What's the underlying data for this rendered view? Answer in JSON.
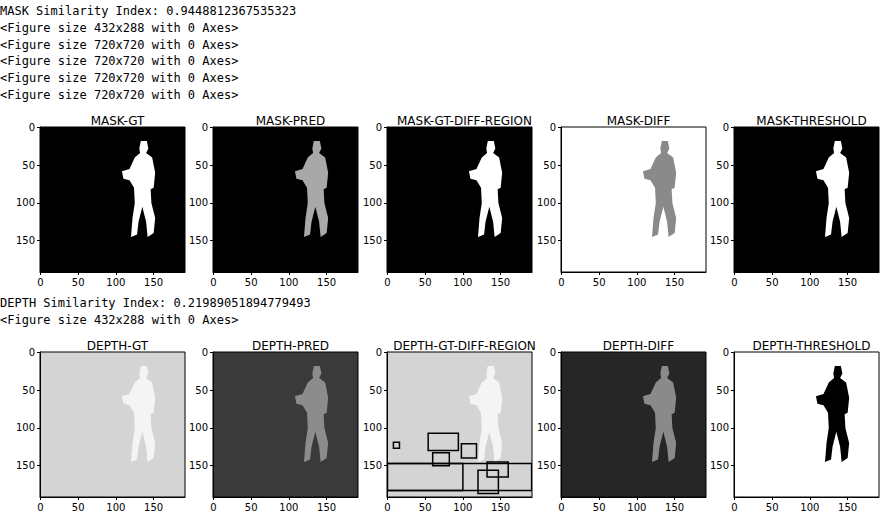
{
  "text_output": {
    "mask_lines": [
      "MASK Similarity Index: 0.9448812367535323",
      "<Figure size 432x288 with 0 Axes>",
      "<Figure size 720x720 with 0 Axes>",
      "<Figure size 720x720 with 0 Axes>",
      "<Figure size 720x720 with 0 Axes>",
      "<Figure size 720x720 with 0 Axes>"
    ],
    "depth_lines": [
      "DEPTH Similarity Index: 0.21989051894779493",
      "<Figure size 432x288 with 0 Axes>"
    ]
  },
  "figure_outline": [
    [
      133,
      18
    ],
    [
      141,
      18
    ],
    [
      143,
      28
    ],
    [
      140,
      34
    ],
    [
      148,
      40
    ],
    [
      152,
      60
    ],
    [
      150,
      80
    ],
    [
      146,
      82
    ],
    [
      147,
      100
    ],
    [
      152,
      120
    ],
    [
      150,
      140
    ],
    [
      142,
      145
    ],
    [
      140,
      125
    ],
    [
      135,
      105
    ],
    [
      130,
      125
    ],
    [
      128,
      142
    ],
    [
      120,
      145
    ],
    [
      122,
      120
    ],
    [
      125,
      100
    ],
    [
      124,
      80
    ],
    [
      118,
      70
    ],
    [
      110,
      68
    ],
    [
      108,
      58
    ],
    [
      118,
      55
    ],
    [
      125,
      40
    ],
    [
      132,
      34
    ],
    [
      131,
      28
    ]
  ],
  "chart_data": [
    {
      "type": "image",
      "title": "MASK-GT",
      "xlim": [
        -0.5,
        191.5
      ],
      "ylim": [
        -0.5,
        191.5
      ],
      "xticks": [
        0,
        50,
        100,
        150
      ],
      "yticks": [
        0,
        50,
        100,
        150
      ],
      "background": "#000000",
      "figure_color": "#ffffff"
    },
    {
      "type": "image",
      "title": "MASK-PRED",
      "xlim": [
        -0.5,
        191.5
      ],
      "ylim": [
        -0.5,
        191.5
      ],
      "xticks": [
        0,
        50,
        100,
        150
      ],
      "yticks": [
        0,
        50,
        100,
        150
      ],
      "background": "#000000",
      "figure_color": "#a8a8a8"
    },
    {
      "type": "image",
      "title": "MASK-GT-DIFF-REGION",
      "xlim": [
        -0.5,
        191.5
      ],
      "ylim": [
        -0.5,
        191.5
      ],
      "xticks": [
        0,
        50,
        100,
        150
      ],
      "yticks": [
        0,
        50,
        100,
        150
      ],
      "background": "#000000",
      "figure_color": "#ffffff"
    },
    {
      "type": "image",
      "title": "MASK-DIFF",
      "xlim": [
        -0.5,
        191.5
      ],
      "ylim": [
        -0.5,
        191.5
      ],
      "xticks": [
        0,
        50,
        100,
        150
      ],
      "yticks": [
        0,
        50,
        100,
        150
      ],
      "background": "#ffffff",
      "figure_color": "#8a8a8a"
    },
    {
      "type": "image",
      "title": "MASK-THRESHOLD",
      "xlim": [
        -0.5,
        191.5
      ],
      "ylim": [
        -0.5,
        191.5
      ],
      "xticks": [
        0,
        50,
        100,
        150
      ],
      "yticks": [
        0,
        50,
        100,
        150
      ],
      "background": "#000000",
      "figure_color": "#ffffff"
    },
    {
      "type": "image",
      "title": "DEPTH-GT",
      "xlim": [
        -0.5,
        191.5
      ],
      "ylim": [
        -0.5,
        191.5
      ],
      "xticks": [
        0,
        50,
        100,
        150
      ],
      "yticks": [
        0,
        50,
        100,
        150
      ],
      "background": "#d4d4d4",
      "figure_color": "#f4f4f4"
    },
    {
      "type": "image",
      "title": "DEPTH-PRED",
      "xlim": [
        -0.5,
        191.5
      ],
      "ylim": [
        -0.5,
        191.5
      ],
      "xticks": [
        0,
        50,
        100,
        150
      ],
      "yticks": [
        0,
        50,
        100,
        150
      ],
      "background": "#3a3a3a",
      "figure_color": "#8c8c8c"
    },
    {
      "type": "image",
      "title": "DEPTH-GT-DIFF-REGION",
      "xlim": [
        -0.5,
        191.5
      ],
      "ylim": [
        -0.5,
        191.5
      ],
      "xticks": [
        0,
        50,
        100,
        150
      ],
      "yticks": [
        0,
        50,
        100,
        150
      ],
      "background": "#d4d4d4",
      "figure_color": "#f4f4f4",
      "boxes": [
        [
          0,
          147,
          191,
          183
        ],
        [
          0,
          147,
          100,
          183
        ],
        [
          54,
          107,
          94,
          130
        ],
        [
          8,
          119,
          16,
          127
        ],
        [
          98,
          121,
          118,
          140
        ],
        [
          120,
          156,
          147,
          187
        ],
        [
          132,
          145,
          160,
          165
        ],
        [
          60,
          133,
          82,
          150
        ]
      ]
    },
    {
      "type": "image",
      "title": "DEPTH-DIFF",
      "xlim": [
        -0.5,
        191.5
      ],
      "ylim": [
        -0.5,
        191.5
      ],
      "xticks": [
        0,
        50,
        100,
        150
      ],
      "yticks": [
        0,
        50,
        100,
        150
      ],
      "background": "#262626",
      "figure_color": "#8a8a8a"
    },
    {
      "type": "image",
      "title": "DEPTH-THRESHOLD",
      "xlim": [
        -0.5,
        191.5
      ],
      "ylim": [
        -0.5,
        191.5
      ],
      "xticks": [
        0,
        50,
        100,
        150
      ],
      "yticks": [
        0,
        50,
        100,
        150
      ],
      "background": "#ffffff",
      "figure_color": "#000000"
    }
  ]
}
